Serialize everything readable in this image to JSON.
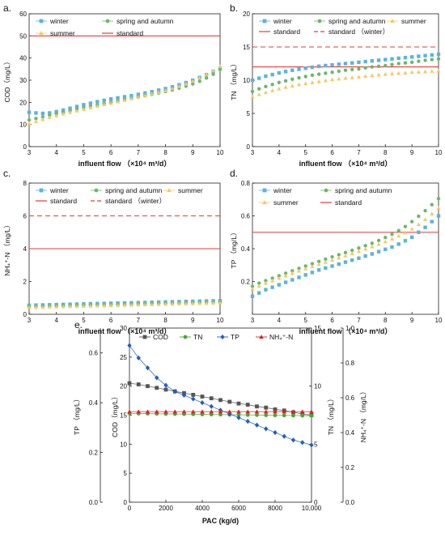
{
  "chart_data": [
    {
      "type": "scatter",
      "panel_label": "a.",
      "ylabel": "COD（mg/L）",
      "xlabel": "influent flow （×10⁴ m³/d）",
      "xlim": [
        3,
        10
      ],
      "ylim": [
        0,
        60
      ],
      "xticks": [
        "3",
        "4",
        "5",
        "6",
        "7",
        "8",
        "9",
        "10"
      ],
      "yticks": [
        "0",
        "10",
        "20",
        "30",
        "40",
        "50",
        "60"
      ],
      "legend_position": "top-left",
      "colors": {
        "winter": "#5ab4e0",
        "spring": "#6ab86a",
        "summer": "#f5c860",
        "standard": "#e83a3a"
      },
      "x": [
        3,
        3.25,
        3.5,
        3.75,
        4,
        4.25,
        4.5,
        4.75,
        5,
        5.25,
        5.5,
        5.75,
        6,
        6.25,
        6.5,
        6.75,
        7,
        7.25,
        7.5,
        7.75,
        8,
        8.25,
        8.5,
        8.75,
        9,
        9.25,
        9.5,
        9.75,
        10
      ],
      "series": [
        {
          "name": "winter",
          "marker": "square",
          "values": [
            15.5,
            15.2,
            15.0,
            15.2,
            15.8,
            16.5,
            17.3,
            18.1,
            18.9,
            19.6,
            20.3,
            20.9,
            21.5,
            22.0,
            22.5,
            23.0,
            23.6,
            24.2,
            24.8,
            25.5,
            26.2,
            27.0,
            27.9,
            28.9,
            30.0,
            31.2,
            32.5,
            33.9,
            35.4
          ]
        },
        {
          "name": "spring and autumn",
          "marker": "circle",
          "values": [
            12.0,
            12.7,
            13.4,
            14.1,
            14.8,
            15.5,
            16.2,
            16.9,
            17.6,
            18.2,
            18.8,
            19.4,
            20.0,
            20.6,
            21.2,
            21.8,
            22.4,
            23.0,
            23.6,
            24.2,
            24.9,
            25.6,
            26.4,
            27.3,
            28.3,
            29.5,
            31.0,
            32.7,
            34.8
          ]
        },
        {
          "name": "summer",
          "marker": "triangle",
          "values": [
            10.5,
            11.4,
            12.3,
            13.2,
            14.0,
            14.8,
            15.5,
            16.2,
            16.9,
            17.6,
            18.3,
            19.0,
            19.6,
            20.3,
            21.0,
            21.7,
            22.4,
            23.1,
            23.8,
            24.5,
            25.3,
            26.2,
            27.2,
            28.3,
            29.6,
            31.0,
            32.6,
            34.3,
            36.2
          ]
        }
      ],
      "lines": [
        {
          "name": "standard",
          "value": 50,
          "dashed": false
        }
      ]
    },
    {
      "type": "scatter",
      "panel_label": "b.",
      "ylabel": "TN （mg/L）",
      "xlabel": "influent flow （×10⁴ m³/d）",
      "xlim": [
        3,
        10
      ],
      "ylim": [
        0,
        20
      ],
      "xticks": [
        "3",
        "4",
        "5",
        "6",
        "7",
        "8",
        "9",
        "10"
      ],
      "yticks": [
        "0",
        "5",
        "10",
        "15",
        "20"
      ],
      "legend_position": "top",
      "colors": {
        "winter": "#5ab4e0",
        "spring": "#6ab86a",
        "summer": "#f5c860",
        "standard": "#e83a3a"
      },
      "x": [
        3,
        3.25,
        3.5,
        3.75,
        4,
        4.25,
        4.5,
        4.75,
        5,
        5.25,
        5.5,
        5.75,
        6,
        6.25,
        6.5,
        6.75,
        7,
        7.25,
        7.5,
        7.75,
        8,
        8.25,
        8.5,
        8.75,
        9,
        9.25,
        9.5,
        9.75,
        10
      ],
      "series": [
        {
          "name": "winter",
          "marker": "square",
          "values": [
            10.0,
            10.3,
            10.6,
            10.85,
            11.1,
            11.3,
            11.5,
            11.65,
            11.8,
            11.95,
            12.1,
            12.2,
            12.3,
            12.4,
            12.5,
            12.6,
            12.7,
            12.8,
            12.9,
            13.0,
            13.1,
            13.2,
            13.3,
            13.4,
            13.5,
            13.6,
            13.7,
            13.8,
            13.9
          ]
        },
        {
          "name": "spring and autumn",
          "marker": "circle",
          "values": [
            8.3,
            8.7,
            9.05,
            9.35,
            9.65,
            9.9,
            10.15,
            10.35,
            10.55,
            10.75,
            10.9,
            11.05,
            11.2,
            11.35,
            11.5,
            11.6,
            11.7,
            11.85,
            12.0,
            12.1,
            12.2,
            12.35,
            12.5,
            12.6,
            12.7,
            12.85,
            13.0,
            13.1,
            13.2
          ]
        },
        {
          "name": "summer",
          "marker": "triangle",
          "values": [
            7.5,
            7.85,
            8.15,
            8.45,
            8.7,
            8.95,
            9.15,
            9.35,
            9.5,
            9.65,
            9.8,
            9.95,
            10.1,
            10.2,
            10.3,
            10.4,
            10.5,
            10.6,
            10.7,
            10.8,
            10.9,
            11.0,
            11.05,
            11.1,
            11.2,
            11.25,
            11.3,
            11.35,
            11.4
          ]
        }
      ],
      "lines": [
        {
          "name": "standard",
          "value": 12,
          "dashed": false
        },
        {
          "name": "standard （winter）",
          "value": 15,
          "dashed": true
        }
      ]
    },
    {
      "type": "scatter",
      "panel_label": "c.",
      "ylabel": "NH₄⁺-N （mg/L）",
      "xlabel": "influent flow （×10⁴ m³/d）",
      "xlim": [
        3,
        10
      ],
      "ylim": [
        0,
        8
      ],
      "xticks": [
        "3",
        "4",
        "5",
        "6",
        "7",
        "8",
        "9",
        "10"
      ],
      "yticks": [
        "0",
        "2",
        "4",
        "6",
        "8"
      ],
      "legend_position": "top",
      "colors": {
        "winter": "#5ab4e0",
        "spring": "#6ab86a",
        "summer": "#f5c860",
        "standard": "#e83a3a"
      },
      "x": [
        3,
        3.25,
        3.5,
        3.75,
        4,
        4.25,
        4.5,
        4.75,
        5,
        5.25,
        5.5,
        5.75,
        6,
        6.25,
        6.5,
        6.75,
        7,
        7.25,
        7.5,
        7.75,
        8,
        8.25,
        8.5,
        8.75,
        9,
        9.25,
        9.5,
        9.75,
        10
      ],
      "series": [
        {
          "name": "winter",
          "marker": "square",
          "values": [
            0.55,
            0.56,
            0.57,
            0.58,
            0.59,
            0.6,
            0.61,
            0.62,
            0.63,
            0.64,
            0.65,
            0.66,
            0.67,
            0.68,
            0.69,
            0.7,
            0.71,
            0.72,
            0.73,
            0.74,
            0.75,
            0.76,
            0.77,
            0.78,
            0.79,
            0.8,
            0.81,
            0.82,
            0.83
          ]
        },
        {
          "name": "spring and autumn",
          "marker": "circle",
          "values": [
            0.47,
            0.48,
            0.49,
            0.5,
            0.51,
            0.52,
            0.53,
            0.54,
            0.55,
            0.56,
            0.57,
            0.58,
            0.59,
            0.6,
            0.61,
            0.62,
            0.63,
            0.64,
            0.65,
            0.66,
            0.67,
            0.68,
            0.69,
            0.7,
            0.71,
            0.72,
            0.73,
            0.74,
            0.75
          ]
        },
        {
          "name": "summer",
          "marker": "triangle",
          "values": [
            0.42,
            0.43,
            0.44,
            0.45,
            0.46,
            0.47,
            0.48,
            0.49,
            0.5,
            0.51,
            0.52,
            0.53,
            0.54,
            0.55,
            0.56,
            0.57,
            0.58,
            0.59,
            0.6,
            0.61,
            0.62,
            0.63,
            0.64,
            0.65,
            0.66,
            0.67,
            0.68,
            0.69,
            0.7
          ]
        }
      ],
      "lines": [
        {
          "name": "standard",
          "value": 4,
          "dashed": false
        },
        {
          "name": "standard （winter）",
          "value": 6,
          "dashed": true
        }
      ]
    },
    {
      "type": "scatter",
      "panel_label": "d.",
      "ylabel": "TP （mg/L）",
      "xlabel": "influent flow （×10⁴ m³/d）",
      "xlim": [
        3,
        10
      ],
      "ylim": [
        0.0,
        0.8
      ],
      "xticks": [
        "3",
        "4",
        "5",
        "6",
        "7",
        "8",
        "9",
        "10"
      ],
      "yticks": [
        "0.2",
        "0.4",
        "0.6",
        "0.8"
      ],
      "legend_position": "top-left",
      "colors": {
        "winter": "#5ab4e0",
        "spring": "#6ab86a",
        "summer": "#f5c860",
        "standard": "#e83a3a"
      },
      "x": [
        3,
        3.25,
        3.5,
        3.75,
        4,
        4.25,
        4.5,
        4.75,
        5,
        5.25,
        5.5,
        5.75,
        6,
        6.25,
        6.5,
        6.75,
        7,
        7.25,
        7.5,
        7.75,
        8,
        8.25,
        8.5,
        8.75,
        9,
        9.25,
        9.5,
        9.75,
        10
      ],
      "series": [
        {
          "name": "winter",
          "marker": "square",
          "values": [
            0.11,
            0.13,
            0.15,
            0.165,
            0.18,
            0.195,
            0.21,
            0.225,
            0.24,
            0.255,
            0.27,
            0.282,
            0.294,
            0.306,
            0.318,
            0.33,
            0.342,
            0.355,
            0.368,
            0.382,
            0.396,
            0.41,
            0.428,
            0.448,
            0.47,
            0.5,
            0.53,
            0.565,
            0.6
          ]
        },
        {
          "name": "spring and autumn",
          "marker": "circle",
          "values": [
            0.17,
            0.19,
            0.205,
            0.22,
            0.235,
            0.25,
            0.265,
            0.28,
            0.294,
            0.308,
            0.322,
            0.336,
            0.35,
            0.363,
            0.376,
            0.39,
            0.404,
            0.418,
            0.433,
            0.45,
            0.468,
            0.488,
            0.51,
            0.535,
            0.565,
            0.598,
            0.632,
            0.668,
            0.705
          ]
        },
        {
          "name": "summer",
          "marker": "triangle",
          "values": [
            0.155,
            0.172,
            0.19,
            0.205,
            0.22,
            0.235,
            0.25,
            0.264,
            0.278,
            0.292,
            0.305,
            0.318,
            0.331,
            0.344,
            0.357,
            0.37,
            0.384,
            0.398,
            0.412,
            0.427,
            0.443,
            0.46,
            0.478,
            0.498,
            0.52,
            0.548,
            0.578,
            0.612,
            0.648
          ]
        }
      ],
      "lines": [
        {
          "name": "standard",
          "value": 0.5,
          "dashed": false
        }
      ]
    },
    {
      "type": "line",
      "panel_label": "e.",
      "xlabel": "PAC (kg/d)",
      "xlim": [
        0,
        10000
      ],
      "xticks": [
        "0",
        "2000",
        "4000",
        "6000",
        "8000",
        "10,000"
      ],
      "axes": {
        "cod": {
          "label": "COD（mg/L）",
          "range": [
            0,
            30
          ],
          "ticks": [
            "0",
            "5",
            "10",
            "15",
            "20",
            "25",
            "30"
          ]
        },
        "tp": {
          "label": "TP （mg/L）",
          "range": [
            0,
            0.7
          ],
          "ticks": [
            "0.0",
            "0.2",
            "0.4",
            "0.6"
          ]
        },
        "tn": {
          "label": "TN （mg/L）",
          "range": [
            0,
            15
          ],
          "ticks": [
            "0",
            "5",
            "10",
            "15"
          ]
        },
        "nh4": {
          "label": "NH₄⁺-N （mg/L）",
          "range": [
            0,
            1.0
          ],
          "ticks": [
            "0.0",
            "0.2",
            "0.4",
            "0.6",
            "0.8",
            "1.0"
          ]
        }
      },
      "legend_position": "top",
      "series": [
        {
          "name": "COD",
          "axis": "cod",
          "marker": "square",
          "color": "#555555",
          "x": [
            0,
            500,
            1000,
            1500,
            2000,
            2500,
            3000,
            3500,
            4000,
            4500,
            5000,
            5500,
            6000,
            6500,
            7000,
            7500,
            8000,
            8500,
            9000,
            9500,
            10000
          ],
          "values": [
            20.5,
            20.3,
            20.0,
            19.7,
            19.4,
            19.1,
            18.8,
            18.5,
            18.2,
            17.9,
            17.6,
            17.3,
            17.0,
            16.8,
            16.5,
            16.3,
            16.0,
            15.8,
            15.5,
            15.2,
            15.0
          ]
        },
        {
          "name": "TN",
          "axis": "tn",
          "marker": "circle",
          "color": "#44aa33",
          "x": [
            0,
            500,
            1000,
            1500,
            2000,
            2500,
            3000,
            3500,
            4000,
            4500,
            5000,
            5500,
            6000,
            6500,
            7000,
            7500,
            8000,
            8500,
            9000,
            9500,
            10000
          ],
          "values": [
            7.65,
            7.64,
            7.63,
            7.62,
            7.61,
            7.6,
            7.59,
            7.58,
            7.57,
            7.56,
            7.55,
            7.54,
            7.53,
            7.52,
            7.51,
            7.5,
            7.49,
            7.48,
            7.47,
            7.46,
            7.45
          ]
        },
        {
          "name": "TP",
          "axis": "tp",
          "marker": "diamond",
          "color": "#1f5fbf",
          "x": [
            0,
            500,
            1000,
            1500,
            2000,
            2500,
            3000,
            3500,
            4000,
            4500,
            5000,
            5500,
            6000,
            6500,
            7000,
            7500,
            8000,
            8500,
            9000,
            9500,
            10000
          ],
          "values": [
            0.63,
            0.58,
            0.54,
            0.5,
            0.47,
            0.445,
            0.43,
            0.415,
            0.4,
            0.385,
            0.37,
            0.355,
            0.34,
            0.325,
            0.31,
            0.295,
            0.28,
            0.265,
            0.25,
            0.24,
            0.23
          ]
        },
        {
          "name": "NH₄⁺-N",
          "axis": "nh4",
          "marker": "triangle",
          "color": "#dd2222",
          "x": [
            0,
            500,
            1000,
            1500,
            2000,
            2500,
            3000,
            3500,
            4000,
            4500,
            5000,
            5500,
            6000,
            6500,
            7000,
            7500,
            8000,
            8500,
            9000,
            9500,
            10000
          ],
          "values": [
            0.52,
            0.52,
            0.52,
            0.52,
            0.52,
            0.52,
            0.52,
            0.52,
            0.52,
            0.52,
            0.52,
            0.52,
            0.52,
            0.52,
            0.52,
            0.52,
            0.52,
            0.52,
            0.52,
            0.52,
            0.52
          ]
        }
      ]
    }
  ]
}
